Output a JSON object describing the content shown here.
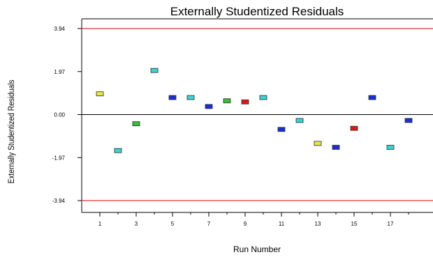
{
  "chart_data": {
    "type": "scatter",
    "title": "Externally Studentized Residuals",
    "xlabel": "Run Number",
    "ylabel": "Externally Studentized Residuals",
    "xlim": [
      0,
      19
    ],
    "ylim": [
      -4.5,
      4.0
    ],
    "y_ticks": [
      {
        "value": 3.94,
        "label": "3.94"
      },
      {
        "value": 1.97,
        "label": "1.97"
      },
      {
        "value": 0.0,
        "label": "0.00"
      },
      {
        "value": -1.97,
        "label": "-1.97"
      },
      {
        "value": -3.94,
        "label": "-3.94"
      }
    ],
    "x_ticks": [
      {
        "value": 1,
        "label": "1"
      },
      {
        "value": 3,
        "label": "3"
      },
      {
        "value": 5,
        "label": "5"
      },
      {
        "value": 7,
        "label": "7"
      },
      {
        "value": 9,
        "label": "9"
      },
      {
        "value": 11,
        "label": "11"
      },
      {
        "value": 13,
        "label": "13"
      },
      {
        "value": 15,
        "label": "15"
      },
      {
        "value": 17,
        "label": "17"
      }
    ],
    "x_minor_ticks": [
      2,
      4,
      6,
      8,
      10,
      12,
      14,
      16,
      18
    ],
    "limit_lines": [
      3.94,
      -3.94
    ],
    "limit_color": "#e03030",
    "zero_line": 0.0,
    "grid": false,
    "points": [
      {
        "x": 1,
        "y": 0.95,
        "color": "#e6e64a"
      },
      {
        "x": 2,
        "y": -1.65,
        "color": "#3cd2d2"
      },
      {
        "x": 3,
        "y": -0.42,
        "color": "#2fc23a"
      },
      {
        "x": 4,
        "y": 2.02,
        "color": "#3cd2d2"
      },
      {
        "x": 5,
        "y": 0.78,
        "color": "#1a2fd6"
      },
      {
        "x": 6,
        "y": 0.78,
        "color": "#3cd2d2"
      },
      {
        "x": 7,
        "y": 0.37,
        "color": "#1a2fd6"
      },
      {
        "x": 8,
        "y": 0.63,
        "color": "#2fc23a"
      },
      {
        "x": 9,
        "y": 0.58,
        "color": "#e01818"
      },
      {
        "x": 10,
        "y": 0.78,
        "color": "#3cd2d2"
      },
      {
        "x": 11,
        "y": -0.68,
        "color": "#1a2fd6"
      },
      {
        "x": 12,
        "y": -0.27,
        "color": "#3cd2d2"
      },
      {
        "x": 13,
        "y": -1.32,
        "color": "#e6e64a"
      },
      {
        "x": 14,
        "y": -1.5,
        "color": "#1a2fd6"
      },
      {
        "x": 15,
        "y": -0.63,
        "color": "#e01818"
      },
      {
        "x": 16,
        "y": 0.78,
        "color": "#1a2fd6"
      },
      {
        "x": 17,
        "y": -1.5,
        "color": "#3cd2d2"
      },
      {
        "x": 18,
        "y": -0.27,
        "color": "#1a2fd6"
      }
    ]
  }
}
